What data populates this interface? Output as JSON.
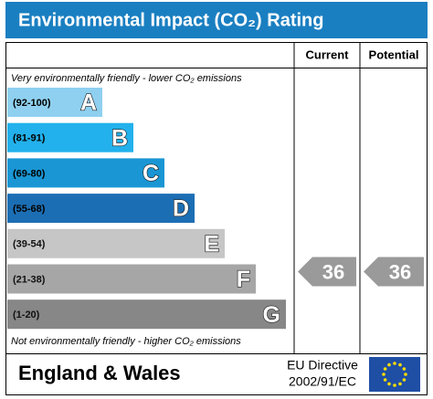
{
  "header": {
    "title": "Environmental Impact (CO₂) Rating",
    "current": "Current",
    "potential": "Potential"
  },
  "notes": {
    "top": "Very environmentally friendly - lower CO₂ emissions",
    "bottom": "Not environmentally friendly - higher CO₂ emissions"
  },
  "bands": [
    {
      "range": "(92-100)",
      "letter": "A",
      "color": "#8fd0f0"
    },
    {
      "range": "(81-91)",
      "letter": "B",
      "color": "#22b1ec"
    },
    {
      "range": "(69-80)",
      "letter": "C",
      "color": "#1a96d4"
    },
    {
      "range": "(55-68)",
      "letter": "D",
      "color": "#1c6eb4"
    },
    {
      "range": "(39-54)",
      "letter": "E",
      "color": "#c6c6c6"
    },
    {
      "range": "(21-38)",
      "letter": "F",
      "color": "#a6a6a6"
    },
    {
      "range": "(1-20)",
      "letter": "G",
      "color": "#878787"
    }
  ],
  "ratings": {
    "current": 36,
    "potential": 36
  },
  "footer": {
    "region": "England & Wales",
    "directive": "EU Directive",
    "code": "2002/91/EC"
  }
}
